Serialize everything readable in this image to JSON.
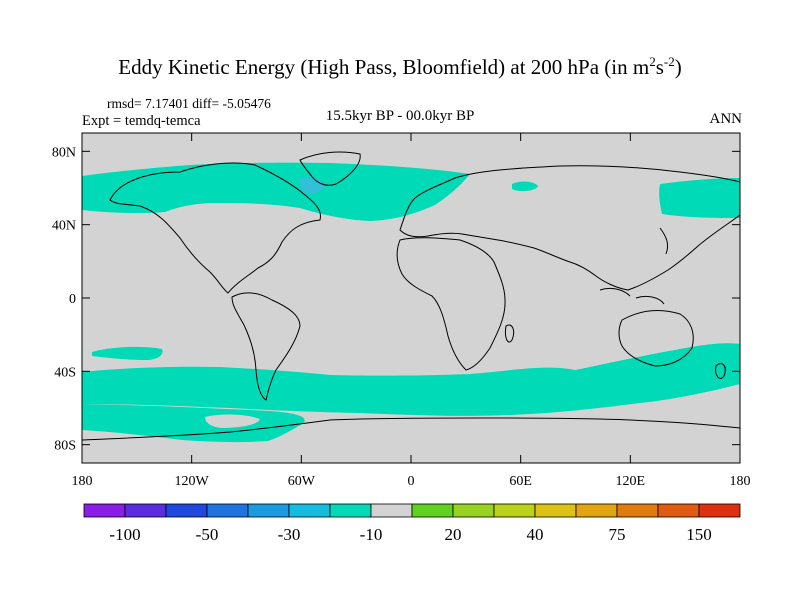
{
  "title": {
    "main": "Eddy Kinetic Energy (High Pass, Bloomfield) at 200 hPa (in m",
    "exp1": "2",
    "mid": "s",
    "exp2": "-2",
    "end": ")"
  },
  "stats": "rmsd= 7.17401 diff= -5.05476",
  "experiment": "Expt = temdq-temca",
  "period": "15.5kyr BP - 00.0kyr BP",
  "season": "ANN",
  "map": {
    "background_color": "#d3d3d3",
    "highlight_color": "#00dab7",
    "lon_range": [
      -180,
      180
    ],
    "lat_range": [
      -90,
      90
    ],
    "y_ticks": [
      {
        "lat": 80,
        "label": "80N"
      },
      {
        "lat": 40,
        "label": "40N"
      },
      {
        "lat": 0,
        "label": "0"
      },
      {
        "lat": -40,
        "label": "40S"
      },
      {
        "lat": -80,
        "label": "80S"
      }
    ],
    "x_ticks": [
      {
        "lon": -180,
        "label": "180"
      },
      {
        "lon": -120,
        "label": "120W"
      },
      {
        "lon": -60,
        "label": "60W"
      },
      {
        "lon": 0,
        "label": "0"
      },
      {
        "lon": 60,
        "label": "60E"
      },
      {
        "lon": 120,
        "label": "120E"
      },
      {
        "lon": 180,
        "label": "180"
      }
    ]
  },
  "colorbar": {
    "colors": [
      "#8a1de6",
      "#5a2ee0",
      "#1f48de",
      "#1f73e0",
      "#1a9be0",
      "#14bde0",
      "#00dab7",
      "#d3d3d3",
      "#5fd21f",
      "#96d21f",
      "#bcd11a",
      "#dcc214",
      "#e2a40f",
      "#e07b0f",
      "#e05a0f",
      "#de2f10"
    ],
    "labels": [
      {
        "boundary": 1,
        "text": "-100"
      },
      {
        "boundary": 3,
        "text": "-50"
      },
      {
        "boundary": 5,
        "text": "-30"
      },
      {
        "boundary": 7,
        "text": "-10"
      },
      {
        "boundary": 9,
        "text": "20"
      },
      {
        "boundary": 11,
        "text": "40"
      },
      {
        "boundary": 13,
        "text": "75"
      },
      {
        "boundary": 15,
        "text": "150"
      }
    ]
  }
}
